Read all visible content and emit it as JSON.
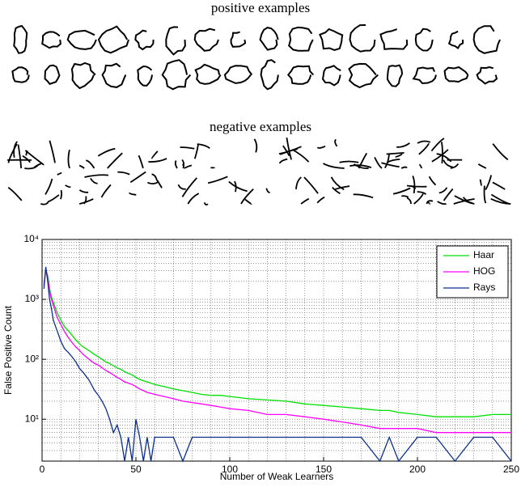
{
  "panels": {
    "positive_label": "positive examples",
    "negative_label": "negative examples"
  },
  "chart_data": {
    "type": "line",
    "xlabel": "Number of Weak Learners",
    "ylabel": "False Positive Count",
    "yscale": "log",
    "grid": true,
    "legend": "top-right",
    "xlim": [
      0,
      250
    ],
    "ylim": [
      2,
      10000
    ],
    "xticks": [
      0,
      50,
      100,
      150,
      200,
      250
    ],
    "yticks": [
      {
        "value": 10,
        "label": "10¹"
      },
      {
        "value": 100,
        "label": "10²"
      },
      {
        "value": 1000,
        "label": "10³"
      },
      {
        "value": 10000,
        "label": "10⁴"
      }
    ],
    "x": [
      1,
      2,
      3,
      4,
      5,
      6,
      8,
      10,
      12,
      14,
      16,
      18,
      20,
      22,
      25,
      28,
      30,
      32,
      34,
      36,
      38,
      40,
      42,
      44,
      46,
      48,
      50,
      52,
      54,
      56,
      58,
      60,
      65,
      70,
      75,
      80,
      85,
      90,
      95,
      100,
      110,
      120,
      130,
      140,
      150,
      160,
      170,
      180,
      185,
      190,
      200,
      210,
      220,
      230,
      240,
      250
    ],
    "series": [
      {
        "name": "Haar",
        "color": "#00e000",
        "values": [
          1800,
          3000,
          2500,
          1500,
          1100,
          900,
          600,
          450,
          350,
          300,
          250,
          210,
          180,
          160,
          140,
          120,
          110,
          100,
          90,
          85,
          78,
          72,
          68,
          62,
          58,
          55,
          50,
          46,
          44,
          42,
          40,
          38,
          35,
          32,
          30,
          28,
          26,
          25,
          25,
          24,
          22,
          21,
          20,
          18,
          17,
          16,
          15,
          14,
          14,
          13,
          12,
          11,
          11,
          11,
          12,
          12
        ]
      },
      {
        "name": "HOG",
        "color": "#ff00ff",
        "values": [
          1700,
          3200,
          2300,
          1400,
          1000,
          800,
          500,
          380,
          290,
          230,
          190,
          160,
          140,
          120,
          100,
          85,
          80,
          72,
          65,
          60,
          55,
          50,
          46,
          42,
          40,
          38,
          35,
          32,
          30,
          28,
          27,
          26,
          24,
          22,
          20,
          19,
          18,
          17,
          16,
          15,
          14,
          12,
          12,
          11,
          10,
          9,
          8,
          7,
          7,
          7,
          7,
          6,
          6,
          6,
          6,
          6
        ]
      },
      {
        "name": "Rays",
        "color": "#0a2f8c",
        "values": [
          1500,
          3500,
          2000,
          1000,
          700,
          450,
          300,
          200,
          150,
          130,
          110,
          90,
          70,
          60,
          45,
          30,
          25,
          20,
          15,
          10,
          6,
          8,
          5,
          2,
          5,
          2,
          10,
          5,
          2,
          5,
          2,
          5,
          5,
          5,
          2,
          5,
          5,
          5,
          5,
          5,
          5,
          5,
          5,
          5,
          5,
          5,
          5,
          2,
          5,
          2,
          5,
          5,
          2,
          5,
          5,
          2
        ]
      }
    ]
  }
}
